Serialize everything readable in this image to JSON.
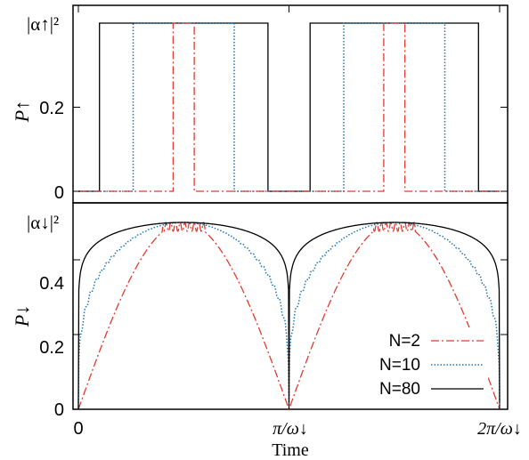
{
  "chart_data": [
    {
      "type": "line",
      "panel": "top",
      "ylabel": "P↑",
      "y_tick_labels": [
        "0",
        "0.2"
      ],
      "y_top_label": "|α↑|²",
      "ylim": [
        0,
        0.4
      ],
      "xlim": [
        0,
        2
      ],
      "x_unit": "π/ω↓",
      "grid": false,
      "series": [
        {
          "name": "N=80",
          "color": "#000000",
          "style": "solid",
          "points": [
            [
              0,
              0
            ],
            [
              0.1,
              0
            ],
            [
              0.1,
              0.4
            ],
            [
              0.9,
              0.4
            ],
            [
              0.9,
              0
            ],
            [
              1.1,
              0
            ],
            [
              1.1,
              0.4
            ],
            [
              1.9,
              0.4
            ],
            [
              1.9,
              0
            ],
            [
              2,
              0
            ]
          ]
        },
        {
          "name": "N=10",
          "color": "#1f77b4",
          "style": "dotted",
          "points": [
            [
              0,
              0
            ],
            [
              0.26,
              0
            ],
            [
              0.26,
              0.4
            ],
            [
              0.74,
              0.4
            ],
            [
              0.74,
              0
            ],
            [
              1.26,
              0
            ],
            [
              1.26,
              0.4
            ],
            [
              1.74,
              0.4
            ],
            [
              1.74,
              0
            ],
            [
              2,
              0
            ]
          ]
        },
        {
          "name": "N=2",
          "color": "#e03c31",
          "style": "dashdot",
          "points": [
            [
              0,
              0
            ],
            [
              0.45,
              0
            ],
            [
              0.45,
              0.4
            ],
            [
              0.55,
              0.4
            ],
            [
              0.55,
              0
            ],
            [
              1.45,
              0
            ],
            [
              1.45,
              0.4
            ],
            [
              1.55,
              0.4
            ],
            [
              1.55,
              0
            ],
            [
              2,
              0
            ]
          ]
        }
      ]
    },
    {
      "type": "line",
      "panel": "bottom",
      "ylabel": "P↓",
      "xlabel": "Time",
      "x_tick_labels": [
        "0",
        "π/ω↓",
        "2π/ω↓"
      ],
      "x_ticks": [
        0,
        1,
        2
      ],
      "y_tick_labels": [
        "0",
        "0.2",
        "0.4"
      ],
      "y_top_label": "|α↓|²",
      "ylim": [
        0,
        0.5
      ],
      "xlim": [
        0,
        2
      ],
      "amplitude": 0.5,
      "legend_position": "bottom-right",
      "grid": false,
      "series": [
        {
          "name": "N=2",
          "color": "#e03c31",
          "style": "dashdot",
          "shape_power": 1
        },
        {
          "name": "N=10",
          "color": "#1f77b4",
          "style": "dotted",
          "shape_power": 0.28
        },
        {
          "name": "N=80",
          "color": "#000000",
          "style": "solid",
          "shape_power": 0.09
        }
      ]
    }
  ]
}
